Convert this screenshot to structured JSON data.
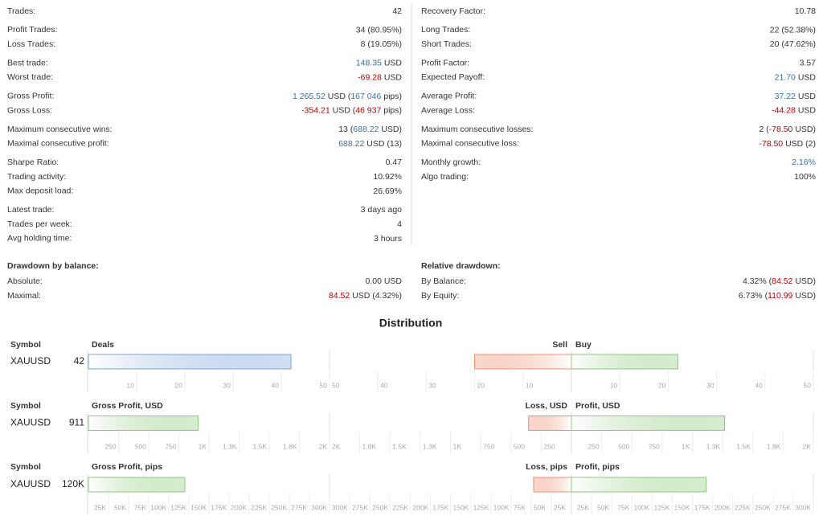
{
  "stats": {
    "left": [
      {
        "rows": [
          {
            "label": "Trades:",
            "value": [
              "42"
            ]
          }
        ]
      },
      {
        "rows": [
          {
            "label": "Profit Trades:",
            "value": [
              "34 (80.95%)"
            ]
          },
          {
            "label": "Loss Trades:",
            "value": [
              "8 (19.05%)"
            ]
          }
        ]
      },
      {
        "rows": [
          {
            "label": "Best trade:",
            "value": [
              {
                "text": "148.35",
                "color": "#3a6ea5"
              },
              " USD"
            ]
          },
          {
            "label": "Worst trade:",
            "value": [
              {
                "text": "-69.28",
                "color": "#c00000"
              },
              " USD"
            ]
          }
        ]
      },
      {
        "rows": [
          {
            "label": "Gross Profit:",
            "value": [
              {
                "text": "1 265.52",
                "color": "#3a6ea5"
              },
              " USD (",
              {
                "text": "167 046",
                "color": "#3a6ea5"
              },
              " pips)"
            ]
          },
          {
            "label": "Gross Loss:",
            "value": [
              {
                "text": "-354.21",
                "color": "#c00000"
              },
              " USD (",
              {
                "text": "46 937",
                "color": "#c00000"
              },
              " pips)"
            ]
          }
        ]
      },
      {
        "rows": [
          {
            "label": "Maximum consecutive wins:",
            "value": [
              "13 (",
              {
                "text": "688.22",
                "color": "#3a6ea5"
              },
              " USD)"
            ]
          },
          {
            "label": "Maximal consecutive profit:",
            "value": [
              {
                "text": "688.22",
                "color": "#3a6ea5"
              },
              " USD (13)"
            ]
          }
        ]
      },
      {
        "rows": [
          {
            "label": "Sharpe Ratio:",
            "value": [
              "0.47"
            ]
          },
          {
            "label": "Trading activity:",
            "value": [
              "10.92%"
            ]
          },
          {
            "label": "Max deposit load:",
            "value": [
              "26.69%"
            ]
          }
        ]
      },
      {
        "rows": [
          {
            "label": "Latest trade:",
            "value": [
              "3 days ago"
            ]
          },
          {
            "label": "Trades per week:",
            "value": [
              "4"
            ]
          },
          {
            "label": "Avg holding time:",
            "value": [
              "3 hours"
            ]
          }
        ]
      }
    ],
    "right": [
      {
        "rows": [
          {
            "label": "Recovery Factor:",
            "value": [
              "10.78"
            ]
          }
        ]
      },
      {
        "rows": [
          {
            "label": "Long Trades:",
            "value": [
              "22 (52.38%)"
            ]
          },
          {
            "label": "Short Trades:",
            "value": [
              "20 (47.62%)"
            ]
          }
        ]
      },
      {
        "rows": [
          {
            "label": "Profit Factor:",
            "value": [
              "3.57"
            ]
          },
          {
            "label": "Expected Payoff:",
            "value": [
              {
                "text": "21.70",
                "color": "#3a6ea5"
              },
              " USD"
            ]
          }
        ]
      },
      {
        "rows": [
          {
            "label": "Average Profit:",
            "value": [
              {
                "text": "37.22",
                "color": "#3a6ea5"
              },
              " USD"
            ]
          },
          {
            "label": "Average Loss:",
            "value": [
              {
                "text": "-44.28",
                "color": "#c00000"
              },
              " USD"
            ]
          }
        ]
      },
      {
        "rows": [
          {
            "label": "Maximum consecutive losses:",
            "value": [
              "2 (",
              {
                "text": "-78.50",
                "color": "#c00000"
              },
              " USD)"
            ]
          },
          {
            "label": "Maximal consecutive loss:",
            "value": [
              {
                "text": "-78.50",
                "color": "#c00000"
              },
              " USD (2)"
            ]
          }
        ]
      },
      {
        "rows": [
          {
            "label": "Monthly growth:",
            "value": [
              {
                "text": "2.16%",
                "color": "#3a6ea5"
              }
            ]
          },
          {
            "label": "Algo trading:",
            "value": [
              "100%"
            ]
          }
        ]
      }
    ]
  },
  "drawdown": {
    "left": {
      "title": "Drawdown by balance:",
      "rows": [
        {
          "label": "Absolute:",
          "value": [
            "0.00 USD"
          ]
        },
        {
          "label": "Maximal:",
          "value": [
            {
              "text": "84.52",
              "color": "#c00000"
            },
            " USD (4.32%)"
          ]
        }
      ]
    },
    "right": {
      "title": "Relative drawdown:",
      "rows": [
        {
          "label": "By Balance:",
          "value": [
            "4.32% (",
            {
              "text": "84.52",
              "color": "#c00000"
            },
            " USD)"
          ]
        },
        {
          "label": "By Equity:",
          "value": [
            "6.73% (",
            {
              "text": "110.99",
              "color": "#c00000"
            },
            " USD)"
          ]
        }
      ]
    }
  },
  "distribution": {
    "title": "Distribution",
    "sell_color": "#ee9070",
    "buy_color": "#8cc97a",
    "rows": [
      {
        "symbol_header": "Symbol",
        "symbol": "XAUUSD",
        "total": 42,
        "left_title": "Deals",
        "left_color": "#7aa3d8",
        "sell_title": "Sell",
        "buy_title": "Buy",
        "sell": 20,
        "buy": 22,
        "xlim": [
          0,
          50
        ],
        "xticks": [
          10,
          20,
          30,
          40,
          50
        ]
      },
      {
        "symbol_header": "Symbol",
        "symbol": "XAUUSD",
        "total": 911,
        "left_title": "Gross Profit, USD",
        "left_color": "#8cc97a",
        "sell_title": "Loss, USD",
        "buy_title": "Profit, USD",
        "sell": 354.21,
        "buy": 1265.52,
        "xlim": [
          0,
          2000
        ],
        "xticks": [
          250,
          500,
          750,
          {
            "value": 1000,
            "label": "1K"
          },
          {
            "value": 1250,
            "label": "1.3K"
          },
          {
            "value": 1500,
            "label": "1.5K"
          },
          {
            "value": 1750,
            "label": "1.8K"
          },
          {
            "value": 2000,
            "label": "2K"
          }
        ]
      },
      {
        "symbol_header": "Symbol",
        "symbol": "XAUUSD",
        "total": 120000,
        "total_label": "120K",
        "left_title": "Gross Profit, pips",
        "left_color": "#8cc97a",
        "sell_title": "Loss, pips",
        "buy_title": "Profit, pips",
        "sell": 46937,
        "buy": 167046,
        "xlim": [
          0,
          300000
        ],
        "xticks": [
          {
            "value": 25000,
            "label": "25K"
          },
          {
            "value": 50000,
            "label": "50K"
          },
          {
            "value": 75000,
            "label": "75K"
          },
          {
            "value": 100000,
            "label": "100K"
          },
          {
            "value": 125000,
            "label": "125K"
          },
          {
            "value": 150000,
            "label": "150K"
          },
          {
            "value": 175000,
            "label": "175K"
          },
          {
            "value": 200000,
            "label": "200K"
          },
          {
            "value": 225000,
            "label": "225K"
          },
          {
            "value": 250000,
            "label": "250K"
          },
          {
            "value": 275000,
            "label": "275K"
          },
          {
            "value": 300000,
            "label": "300K"
          }
        ]
      }
    ]
  }
}
